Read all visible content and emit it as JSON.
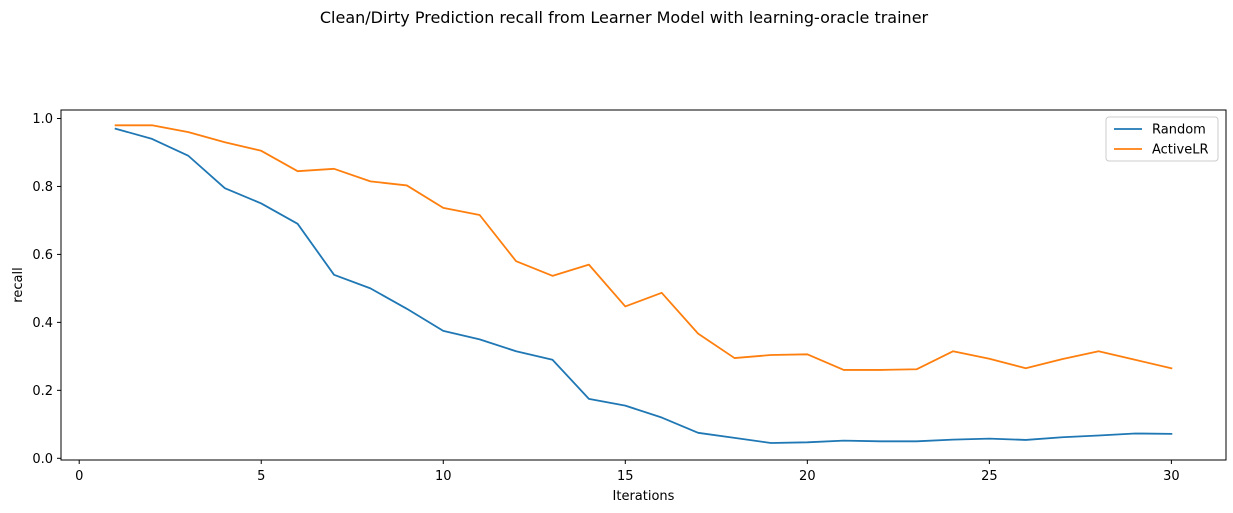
{
  "chart_data": {
    "type": "line",
    "title": "Clean/Dirty Prediction recall from Learner Model with learning-oracle trainer",
    "xlabel": "Iterations",
    "ylabel": "recall",
    "xlim": [
      -0.5,
      31.5
    ],
    "ylim": [
      -0.005,
      1.025
    ],
    "xticks": [
      0,
      5,
      10,
      15,
      20,
      25,
      30
    ],
    "yticks": [
      0.0,
      0.2,
      0.4,
      0.6,
      0.8,
      1.0
    ],
    "legend_position": "top-right",
    "grid": false,
    "x": [
      1,
      2,
      3,
      4,
      5,
      6,
      7,
      8,
      9,
      10,
      11,
      12,
      13,
      14,
      15,
      16,
      17,
      18,
      19,
      20,
      21,
      22,
      23,
      24,
      25,
      26,
      27,
      28,
      29,
      30
    ],
    "series": [
      {
        "name": "Random",
        "color": "#1f77b4",
        "values": [
          0.97,
          0.94,
          0.89,
          0.795,
          0.75,
          0.69,
          0.54,
          0.5,
          0.44,
          0.375,
          0.35,
          0.315,
          0.29,
          0.175,
          0.155,
          0.12,
          0.075,
          0.06,
          0.045,
          0.047,
          0.052,
          0.05,
          0.05,
          0.055,
          0.058,
          0.054,
          0.062,
          0.067,
          0.073,
          0.072
        ]
      },
      {
        "name": "ActiveLR",
        "color": "#ff7f0e",
        "values": [
          0.98,
          0.98,
          0.96,
          0.93,
          0.905,
          0.845,
          0.852,
          0.815,
          0.803,
          0.737,
          0.716,
          0.58,
          0.537,
          0.57,
          0.447,
          0.487,
          0.367,
          0.295,
          0.304,
          0.306,
          0.26,
          0.26,
          0.262,
          0.315,
          0.293,
          0.265,
          0.292,
          0.315,
          0.29,
          0.265
        ]
      }
    ]
  }
}
